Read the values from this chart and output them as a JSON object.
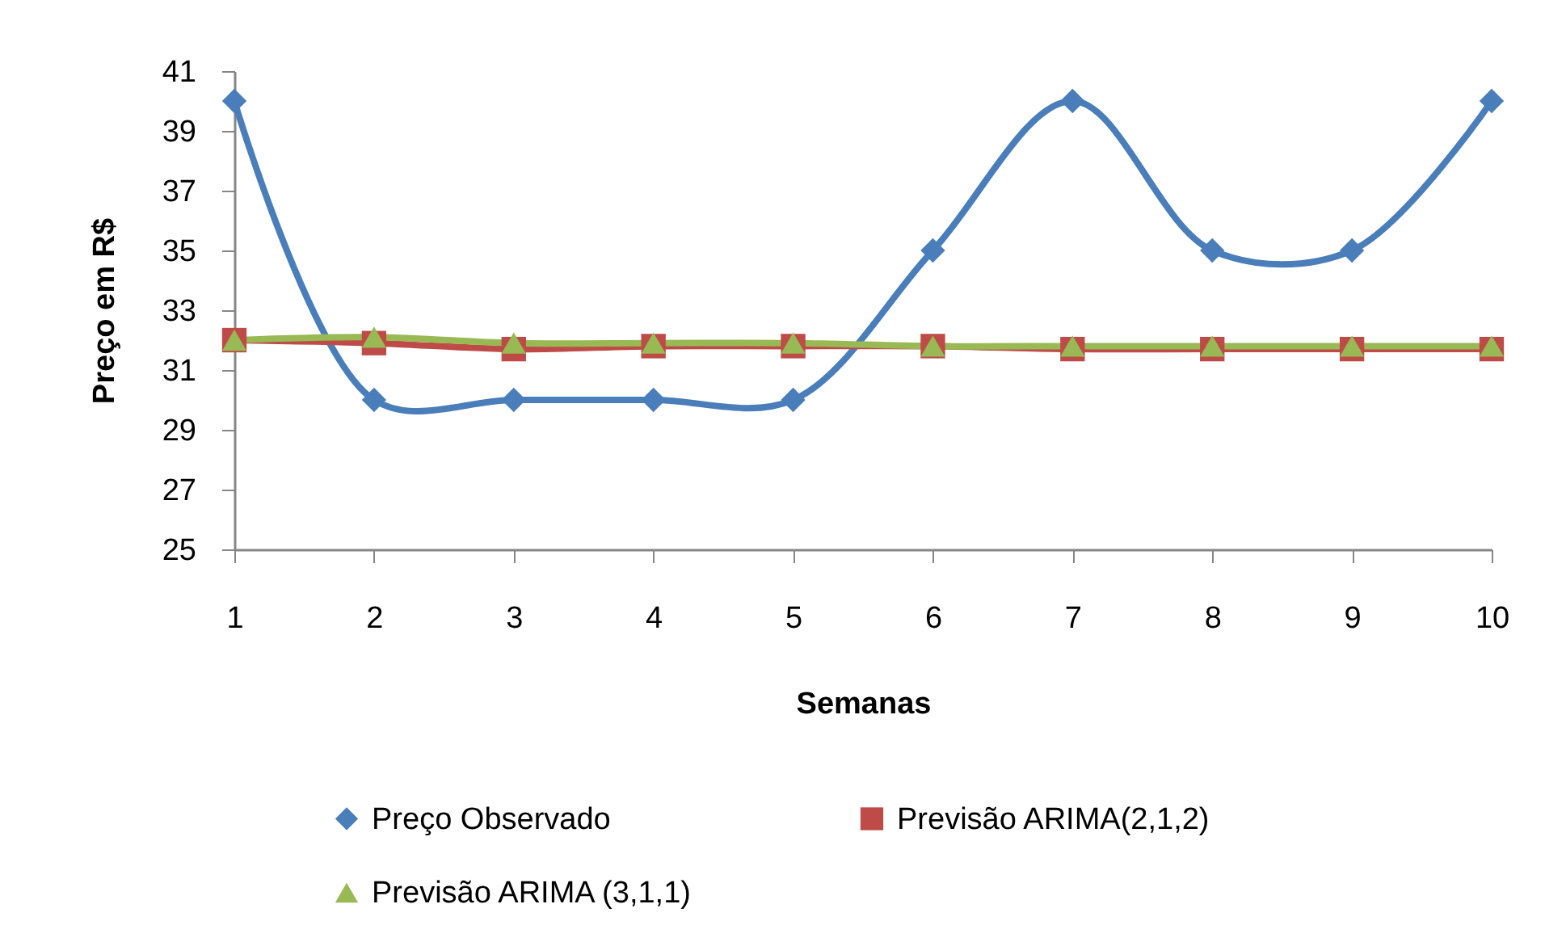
{
  "chart_data": {
    "type": "line",
    "xlabel": "Semanas",
    "ylabel": "Preço em R$",
    "categories": [
      "1",
      "2",
      "3",
      "4",
      "5",
      "6",
      "7",
      "8",
      "9",
      "10"
    ],
    "series": [
      {
        "name": "Preço Observado",
        "color": "#4a7ebb",
        "marker": "diamond",
        "values": [
          40,
          30,
          30,
          30,
          30,
          35,
          40,
          35,
          35,
          40
        ]
      },
      {
        "name": "Previsão ARIMA(2,1,2)",
        "color": "#be4b48",
        "marker": "square",
        "values": [
          32.0,
          31.9,
          31.7,
          31.8,
          31.8,
          31.8,
          31.7,
          31.7,
          31.7,
          31.7
        ]
      },
      {
        "name": "Previsão ARIMA (3,1,1)",
        "color": "#98b954",
        "marker": "triangle",
        "values": [
          32.0,
          32.1,
          31.9,
          31.9,
          31.9,
          31.8,
          31.8,
          31.8,
          31.8,
          31.8
        ]
      }
    ],
    "ylim": [
      25,
      41
    ],
    "yticks": [
      25,
      27,
      29,
      31,
      33,
      35,
      37,
      39,
      41
    ],
    "grid": false,
    "legend": "bottom",
    "line_style": "solid"
  }
}
